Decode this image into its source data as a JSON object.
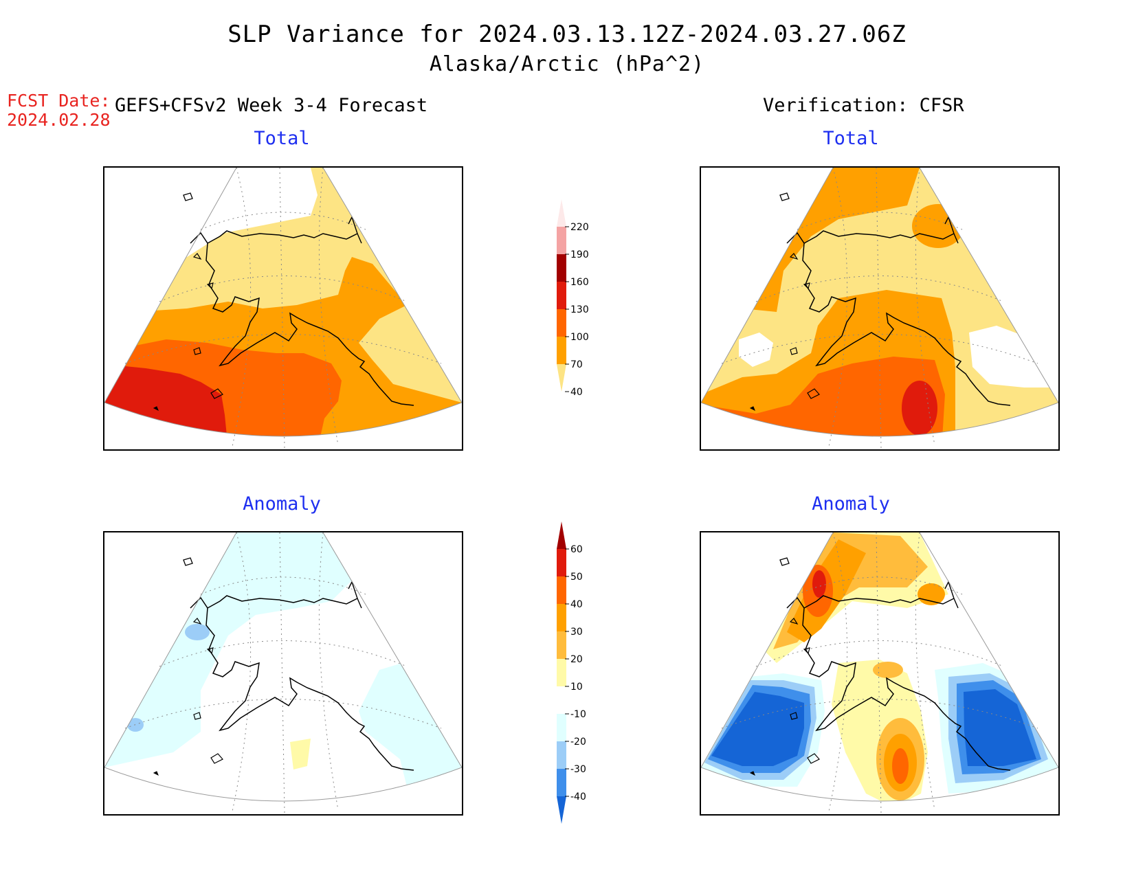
{
  "header": {
    "title_line1": "SLP Variance for 2024.03.13.12Z-2024.03.27.06Z",
    "title_line2": "Alaska/Arctic (hPa^2)"
  },
  "forecast_info": {
    "label": "FCST Date:",
    "date": "2024.02.28",
    "model": "GEFS+CFSv2 Week 3-4 Forecast"
  },
  "verification_label": "Verification: CFSR",
  "panels": [
    {
      "id": "fcst-total",
      "title": "Total"
    },
    {
      "id": "verif-total",
      "title": "Total"
    },
    {
      "id": "fcst-anomaly",
      "title": "Anomaly"
    },
    {
      "id": "verif-anomaly",
      "title": "Anomaly"
    }
  ],
  "colorbars": {
    "total": {
      "labels": [
        "220",
        "190",
        "160",
        "130",
        "100",
        "70",
        "40"
      ],
      "colors": [
        "#fde9e9",
        "#f4a3a3",
        "#a20000",
        "#e01b0c",
        "#ff6600",
        "#ffa000",
        "#fde484"
      ]
    },
    "anomaly": {
      "labels": [
        "60",
        "50",
        "40",
        "30",
        "20",
        "10",
        "-10",
        "-20",
        "-30",
        "-40"
      ],
      "colors": [
        "#a20000",
        "#e01b0c",
        "#ff6600",
        "#ffa000",
        "#ffbc3c",
        "#fffaa8",
        "#ffffff",
        "#e0ffff",
        "#9ccdf7",
        "#3f8feb",
        "#1565d6"
      ]
    }
  },
  "map_colors": {
    "light_yellow": "#fde484",
    "orange": "#ffa000",
    "dark_orange": "#ff6600",
    "red": "#e01b0c",
    "dark_red": "#c8120e",
    "pale_yellow": "#fffaa8",
    "light_cyan": "#e0ffff",
    "light_blue": "#9ccdf7",
    "mid_blue": "#3f8feb",
    "deep_blue": "#1565d6"
  }
}
